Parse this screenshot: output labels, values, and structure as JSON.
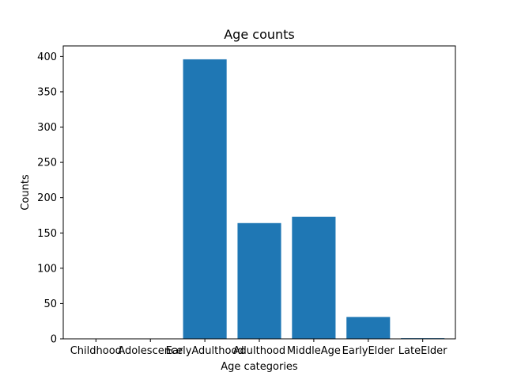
{
  "chart_data": {
    "type": "bar",
    "title": "Age counts",
    "xlabel": "Age categories",
    "ylabel": "Counts",
    "categories": [
      "Childhood",
      "Adolescence",
      "EarlyAdulthood",
      "Adulthood",
      "MiddleAge",
      "EarlyElder",
      "LateElder"
    ],
    "values": [
      0,
      0,
      396,
      164,
      173,
      31,
      1
    ],
    "ylim": [
      0,
      415
    ],
    "yticks": [
      0,
      50,
      100,
      150,
      200,
      250,
      300,
      350,
      400
    ],
    "grid": false,
    "bar_color": "#1f77b4"
  }
}
